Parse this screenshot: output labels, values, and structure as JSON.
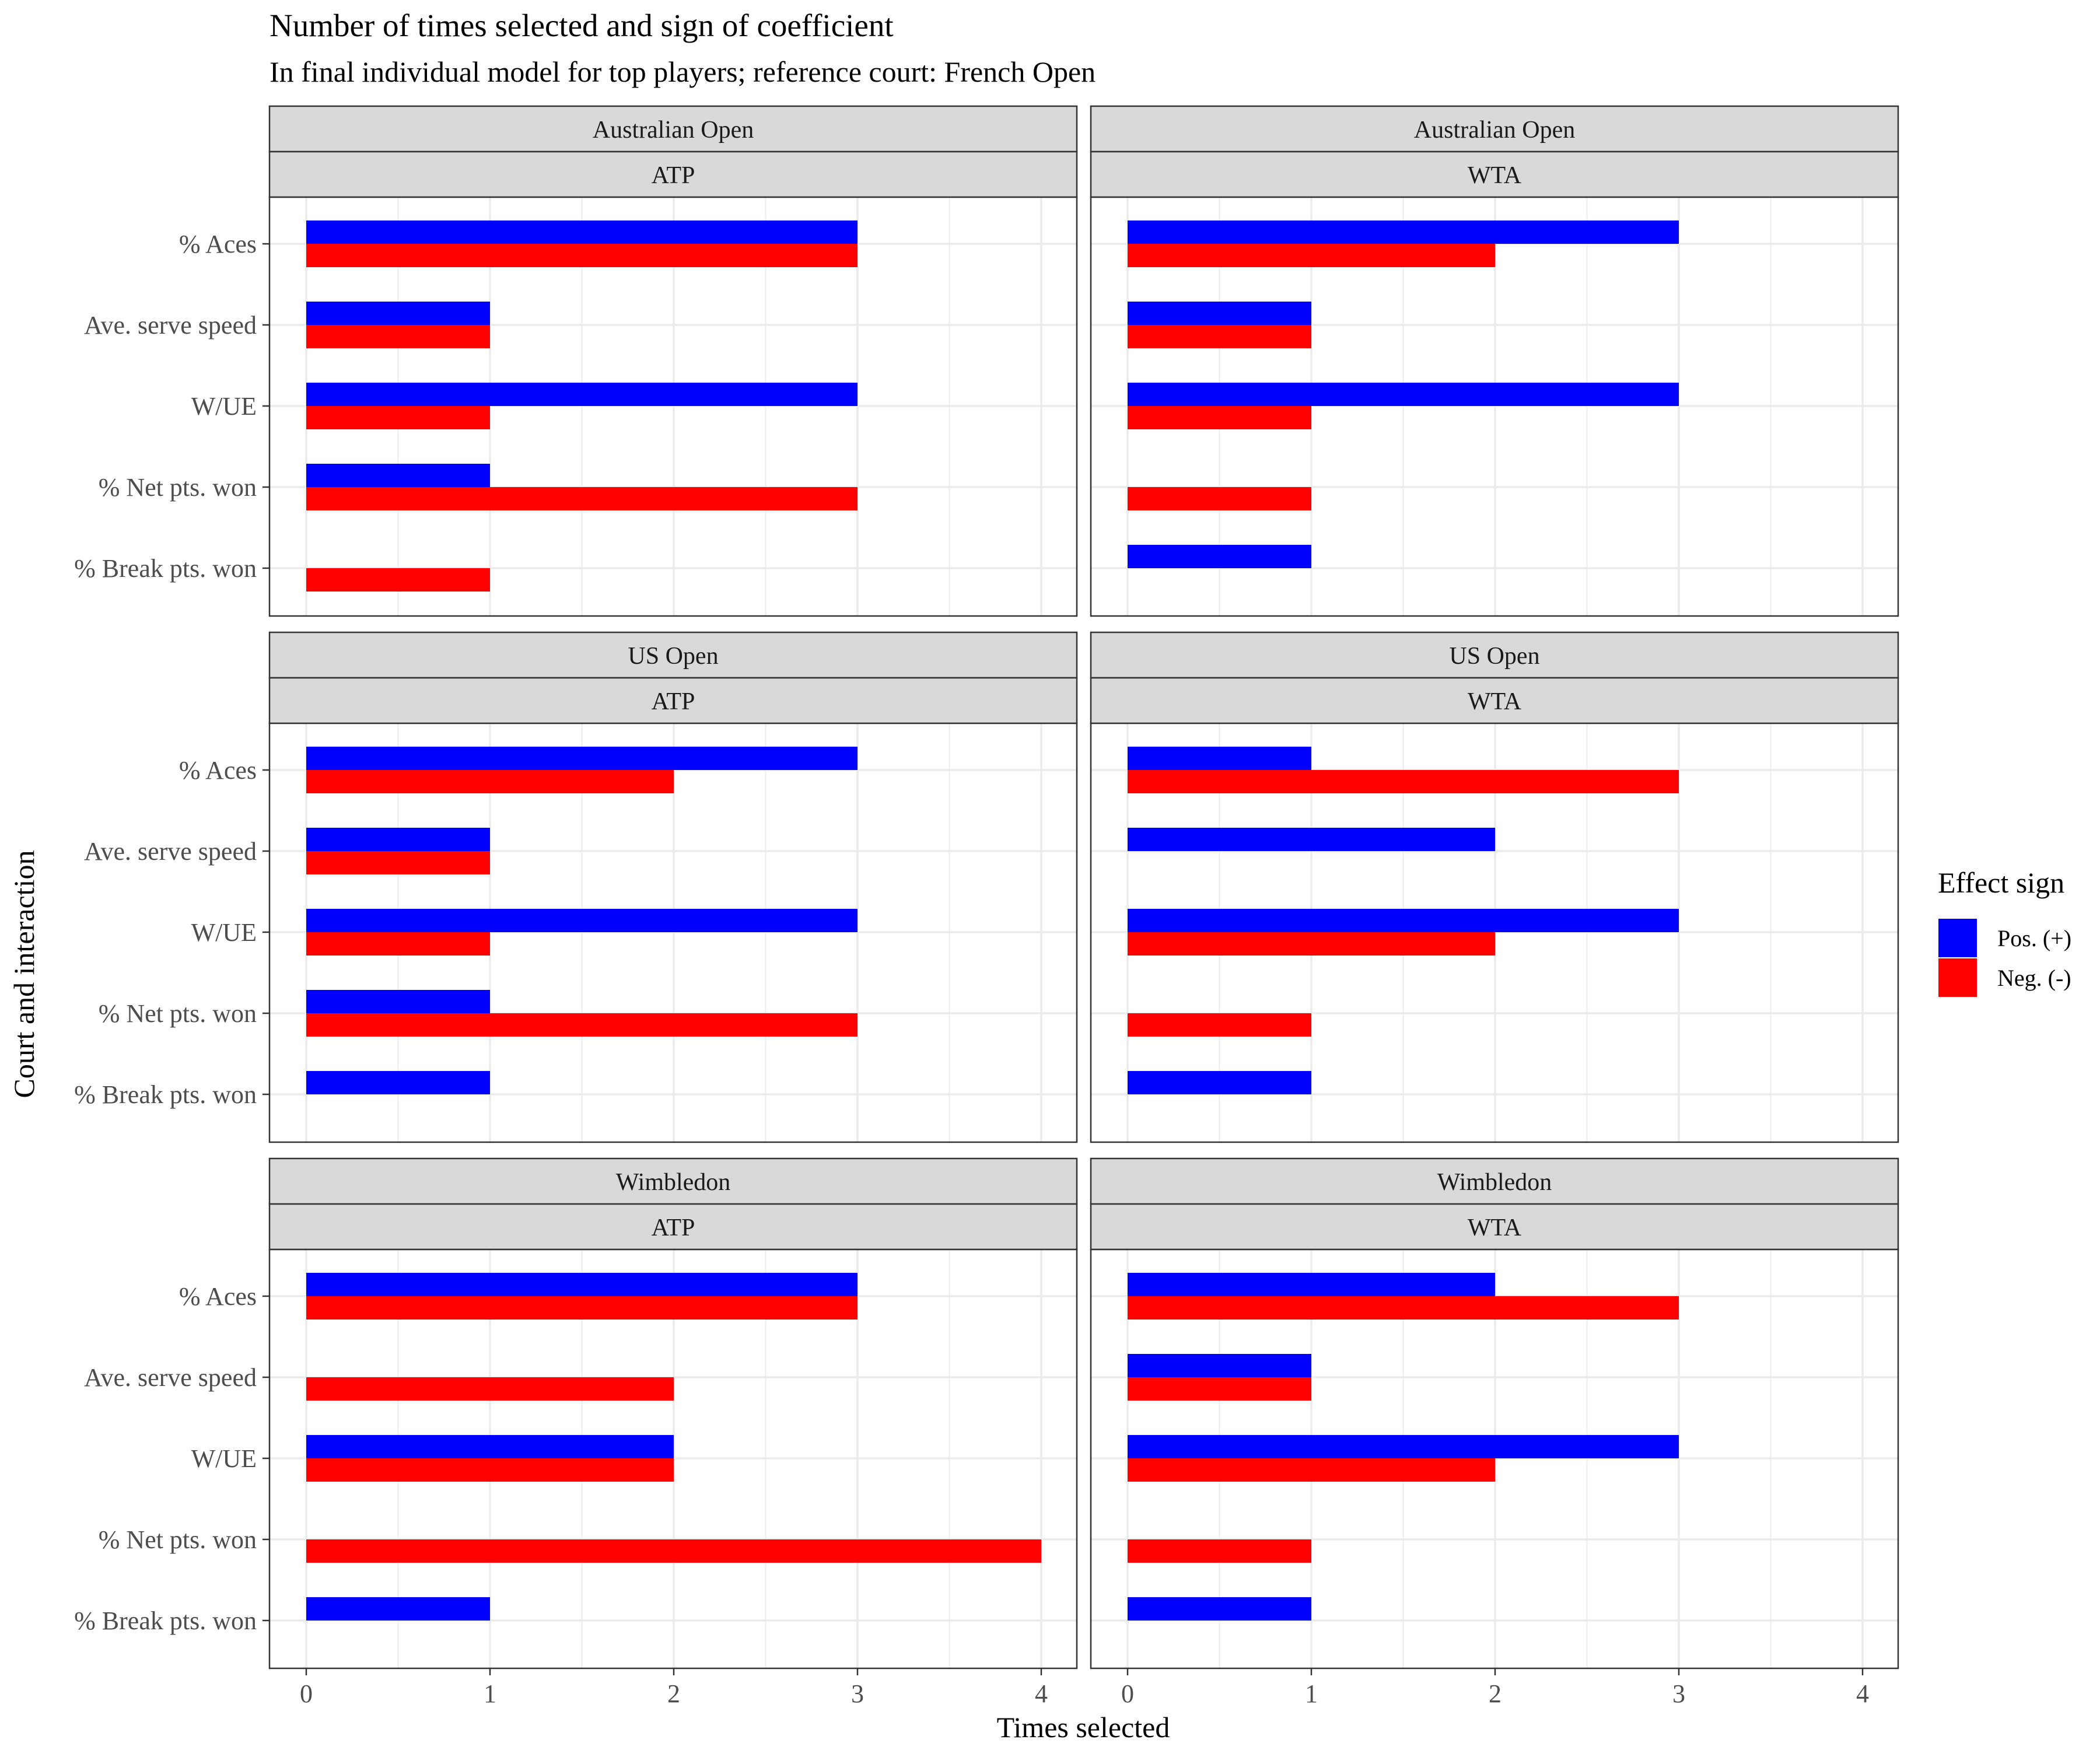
{
  "title": "Number of times selected and sign of coefficient",
  "subtitle": "In final individual model for top players; reference court: French Open",
  "colors": {
    "positive": "#0000ff",
    "negative": "#ff0000",
    "strip_fill": "#d9d9d9",
    "grid": "#ebebeb",
    "panel_border": "#333333"
  },
  "chart_data": {
    "type": "bar",
    "orientation": "horizontal",
    "xlabel": "Times selected",
    "ylabel": "Court and interaction",
    "xlim": [
      0,
      4
    ],
    "x_ticks": [
      "0",
      "1",
      "2",
      "3",
      "4"
    ],
    "categories": [
      "% Aces",
      "Ave. serve speed",
      "W/UE",
      "% Net pts. won",
      "% Break pts. won"
    ],
    "grid": true,
    "legend": {
      "title": "Effect sign",
      "position": "right",
      "entries": [
        "Pos. (+)",
        "Neg. (-)"
      ]
    },
    "panels": [
      {
        "court": "Australian Open",
        "tour": "ATP",
        "series": [
          {
            "name": "Pos. (+)",
            "values": [
              3,
              1,
              3,
              1,
              0
            ]
          },
          {
            "name": "Neg. (-)",
            "values": [
              3,
              1,
              1,
              3,
              1
            ]
          }
        ]
      },
      {
        "court": "Australian Open",
        "tour": "WTA",
        "series": [
          {
            "name": "Pos. (+)",
            "values": [
              3,
              1,
              3,
              0,
              1
            ]
          },
          {
            "name": "Neg. (-)",
            "values": [
              2,
              1,
              1,
              1,
              0
            ]
          }
        ]
      },
      {
        "court": "US Open",
        "tour": "ATP",
        "series": [
          {
            "name": "Pos. (+)",
            "values": [
              3,
              1,
              3,
              1,
              1
            ]
          },
          {
            "name": "Neg. (-)",
            "values": [
              2,
              1,
              1,
              3,
              0
            ]
          }
        ]
      },
      {
        "court": "US Open",
        "tour": "WTA",
        "series": [
          {
            "name": "Pos. (+)",
            "values": [
              1,
              2,
              3,
              0,
              1
            ]
          },
          {
            "name": "Neg. (-)",
            "values": [
              3,
              0,
              2,
              1,
              0
            ]
          }
        ]
      },
      {
        "court": "Wimbledon",
        "tour": "ATP",
        "series": [
          {
            "name": "Pos. (+)",
            "values": [
              3,
              0,
              2,
              0,
              1
            ]
          },
          {
            "name": "Neg. (-)",
            "values": [
              3,
              2,
              2,
              4,
              0
            ]
          }
        ]
      },
      {
        "court": "Wimbledon",
        "tour": "WTA",
        "series": [
          {
            "name": "Pos. (+)",
            "values": [
              2,
              1,
              3,
              0,
              1
            ]
          },
          {
            "name": "Neg. (-)",
            "values": [
              3,
              1,
              2,
              1,
              0
            ]
          }
        ]
      }
    ]
  }
}
